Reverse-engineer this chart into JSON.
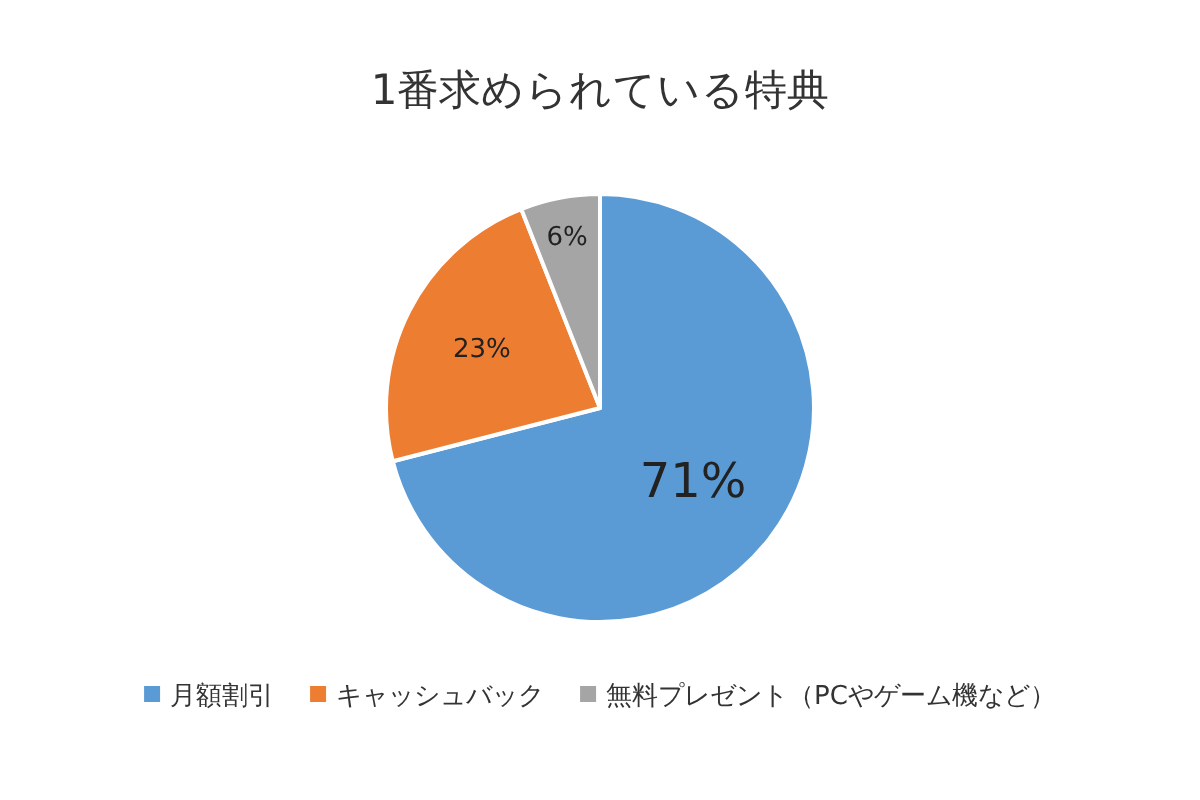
{
  "chart_data": {
    "type": "pie",
    "title": "1番求められている特典",
    "categories": [
      "月額割引",
      "キャッシュバック",
      "無料プレゼント（PCやゲーム機など）"
    ],
    "values": [
      71,
      23,
      6
    ],
    "colors": [
      "#5b9bd5",
      "#ed7d31",
      "#a5a5a5"
    ],
    "value_labels": [
      "71%",
      "23%",
      "6%"
    ],
    "legend": "bottom"
  }
}
